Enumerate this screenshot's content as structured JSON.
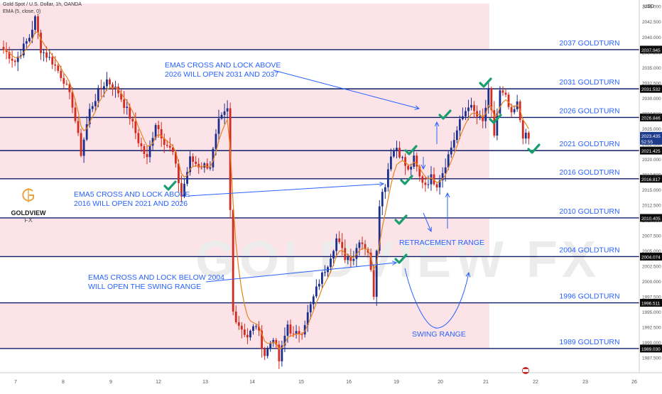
{
  "header": {
    "symbol_line": "Gold Spot / U.S. Dollar, 1h, OANDA",
    "indicator_line": "EMA (5, close, 0)"
  },
  "currency_label": "USD",
  "logo": {
    "name_bold": "GOLDVIEW",
    "name_rest": "FX"
  },
  "watermark": "GOLDVIEW FX",
  "colors": {
    "zone_fill": "#fbe3e8",
    "level_line": "#0d1a66",
    "annotation_blue": "#2962ff",
    "candle_up": "#1c2f8c",
    "candle_down": "#d42a1f",
    "ema": "#e8821e",
    "check": "#1a9e6f",
    "price_tag": "#1e3a8a"
  },
  "annotations": {
    "a1_line1": "EMA5 CROSS AND LOCK ABOVE",
    "a1_line2": "2026 WILL OPEN 2031 AND 2037",
    "a2_line1": "EMA5 CROSS AND LOCK ABOVE",
    "a2_line2": "2016 WILL OPEN 2021 AND 2026",
    "a3_line1": "EMA5 CROSS AND LOCK BELOW 2004",
    "a3_line2": "WILL OPEN THE SWING RANGE",
    "retracement": "RETRACEMENT RANGE",
    "swing": "SWING RANGE"
  },
  "chart_data": {
    "type": "candlestick",
    "title": "Gold Spot / U.S. Dollar, 1h, OANDA",
    "ylim": [
      1986,
      2045
    ],
    "x_ticks": [
      "7",
      "8",
      "9",
      "12",
      "13",
      "14",
      "15",
      "16",
      "19",
      "20",
      "21",
      "22",
      "23",
      "26"
    ],
    "y_ticks": [
      "2045.000",
      "2042.500",
      "2040.000",
      "2037.500",
      "2035.000",
      "2032.500",
      "2030.000",
      "2027.500",
      "2025.000",
      "2022.500",
      "2020.000",
      "2017.500",
      "2015.000",
      "2012.500",
      "2010.000",
      "2007.500",
      "2005.000",
      "2002.500",
      "2000.000",
      "1997.500",
      "1995.000",
      "1992.500",
      "1990.000",
      "1987.500"
    ],
    "levels": [
      {
        "price": 2037.945,
        "label": "2037 GOLDTURN",
        "tag": "2037.945"
      },
      {
        "price": 2031.532,
        "label": "2031 GOLDTURN",
        "tag": "2031.532"
      },
      {
        "price": 2026.846,
        "label": "2026 GOLDTURN",
        "tag": "2026.846"
      },
      {
        "price": 2021.425,
        "label": "2021 GOLDTURN",
        "tag": "2021.425"
      },
      {
        "price": 2016.817,
        "label": "2016 GOLDTURN",
        "tag": "2016.817"
      },
      {
        "price": 2010.405,
        "label": "2010 GOLDTURN",
        "tag": "2010.405"
      },
      {
        "price": 2004.074,
        "label": "2004 GOLDTURN",
        "tag": "2004.074"
      },
      {
        "price": 1996.511,
        "label": "1996 GOLDTURN",
        "tag": "1996.511"
      },
      {
        "price": 1989.03,
        "label": "1989 GOLDTURN",
        "tag": "1989.030"
      }
    ],
    "zones": [
      [
        2037.945,
        2045.5
      ],
      [
        2016.817,
        2031.532
      ],
      [
        2004.074,
        2010.405
      ],
      [
        1989.03,
        1996.511
      ]
    ],
    "current_price": {
      "value": "2023.435",
      "countdown": "52:55"
    },
    "ema_period": 5,
    "anchors": [
      {
        "t": 0,
        "p": 2038
      },
      {
        "t": 4,
        "p": 2036
      },
      {
        "t": 9,
        "p": 2040
      },
      {
        "t": 11,
        "p": 2043
      },
      {
        "t": 13,
        "p": 2038
      },
      {
        "t": 17,
        "p": 2036
      },
      {
        "t": 21,
        "p": 2033
      },
      {
        "t": 24,
        "p": 2029
      },
      {
        "t": 27,
        "p": 2021
      },
      {
        "t": 30,
        "p": 2028
      },
      {
        "t": 33,
        "p": 2031
      },
      {
        "t": 36,
        "p": 2033
      },
      {
        "t": 40,
        "p": 2031
      },
      {
        "t": 44,
        "p": 2027
      },
      {
        "t": 47,
        "p": 2023
      },
      {
        "t": 50,
        "p": 2020
      },
      {
        "t": 53,
        "p": 2026
      },
      {
        "t": 56,
        "p": 2023
      },
      {
        "t": 59,
        "p": 2021
      },
      {
        "t": 62,
        "p": 2014
      },
      {
        "t": 65,
        "p": 2020
      },
      {
        "t": 68,
        "p": 2019
      },
      {
        "t": 72,
        "p": 2019
      },
      {
        "t": 75,
        "p": 2026
      },
      {
        "t": 78,
        "p": 2028
      },
      {
        "t": 80,
        "p": 1995
      },
      {
        "t": 82,
        "p": 1993
      },
      {
        "t": 85,
        "p": 1991
      },
      {
        "t": 88,
        "p": 1993
      },
      {
        "t": 91,
        "p": 1988
      },
      {
        "t": 94,
        "p": 1991
      },
      {
        "t": 96,
        "p": 1987
      },
      {
        "t": 99,
        "p": 1993
      },
      {
        "t": 101,
        "p": 1991
      },
      {
        "t": 104,
        "p": 1992
      },
      {
        "t": 107,
        "p": 1996
      },
      {
        "t": 110,
        "p": 2000
      },
      {
        "t": 113,
        "p": 2003
      },
      {
        "t": 116,
        "p": 2007
      },
      {
        "t": 119,
        "p": 2004
      },
      {
        "t": 122,
        "p": 2004
      },
      {
        "t": 124,
        "p": 2007
      },
      {
        "t": 127,
        "p": 2005
      },
      {
        "t": 129,
        "p": 1998
      },
      {
        "t": 131,
        "p": 2013
      },
      {
        "t": 133,
        "p": 2016
      },
      {
        "t": 135,
        "p": 2021
      },
      {
        "t": 137,
        "p": 2022
      },
      {
        "t": 139,
        "p": 2020
      },
      {
        "t": 141,
        "p": 2018
      },
      {
        "t": 143,
        "p": 2020
      },
      {
        "t": 145,
        "p": 2017
      },
      {
        "t": 147,
        "p": 2016
      },
      {
        "t": 149,
        "p": 2017
      },
      {
        "t": 151,
        "p": 2016
      },
      {
        "t": 153,
        "p": 2018
      },
      {
        "t": 156,
        "p": 2022
      },
      {
        "t": 159,
        "p": 2026
      },
      {
        "t": 162,
        "p": 2029
      },
      {
        "t": 165,
        "p": 2027
      },
      {
        "t": 167,
        "p": 2026
      },
      {
        "t": 169,
        "p": 2031
      },
      {
        "t": 171,
        "p": 2024
      },
      {
        "t": 173,
        "p": 2031
      },
      {
        "t": 175,
        "p": 2030
      },
      {
        "t": 177,
        "p": 2027
      },
      {
        "t": 179,
        "p": 2029
      },
      {
        "t": 181,
        "p": 2024
      },
      {
        "t": 183,
        "p": 2023.4
      }
    ]
  }
}
